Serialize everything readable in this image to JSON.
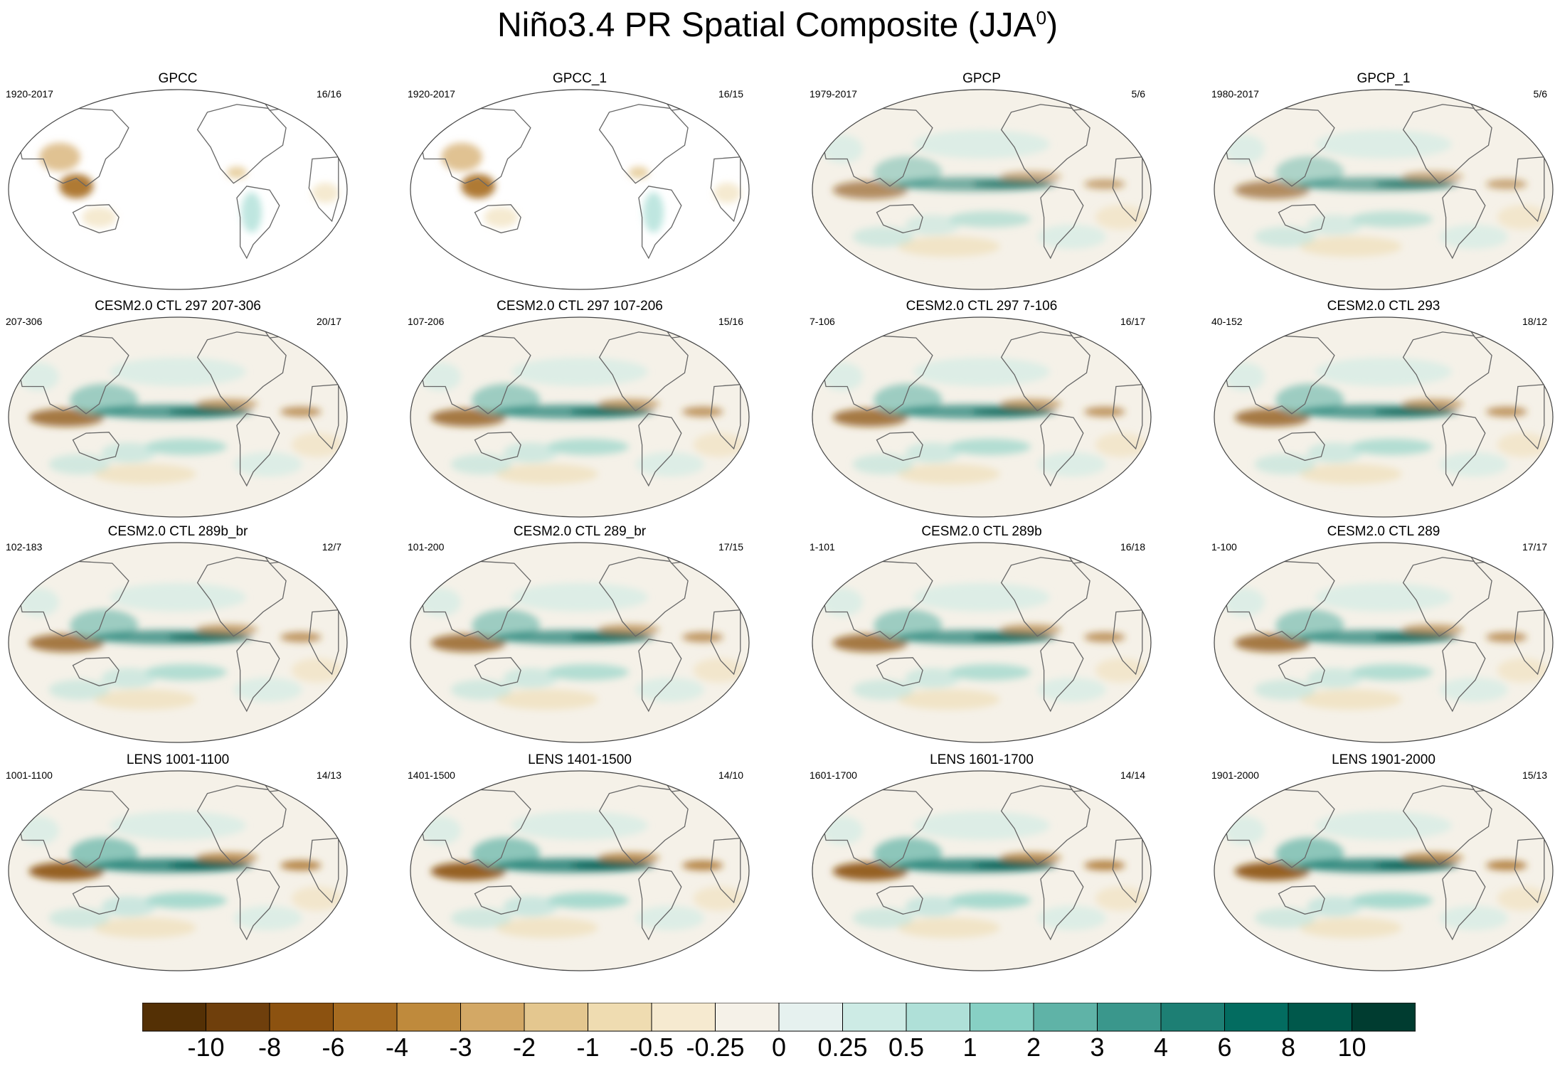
{
  "chart_data": {
    "type": "heatmap",
    "title_main": "Niño3.4 PR Spatial Composite (JJA",
    "title_sup": "0",
    "title_close": ")",
    "panels": [
      {
        "name": "GPCC",
        "years": "1920-2017",
        "counts": "16/16",
        "kind": "obs_land"
      },
      {
        "name": "GPCC_1",
        "years": "1920-2017",
        "counts": "16/15",
        "kind": "obs_land"
      },
      {
        "name": "GPCP",
        "years": "1979-2017",
        "counts": "5/6",
        "kind": "obs"
      },
      {
        "name": "GPCP_1",
        "years": "1980-2017",
        "counts": "5/6",
        "kind": "obs"
      },
      {
        "name": "CESM2.0 CTL 297 207-306",
        "years": "207-306",
        "counts": "20/17",
        "kind": "model"
      },
      {
        "name": "CESM2.0 CTL 297 107-206",
        "years": "107-206",
        "counts": "15/16",
        "kind": "model"
      },
      {
        "name": "CESM2.0 CTL 297 7-106",
        "years": "7-106",
        "counts": "16/17",
        "kind": "model"
      },
      {
        "name": "CESM2.0 CTL 293",
        "years": "40-152",
        "counts": "18/12",
        "kind": "model"
      },
      {
        "name": "CESM2.0 CTL 289b_br",
        "years": "102-183",
        "counts": "12/7",
        "kind": "model"
      },
      {
        "name": "CESM2.0 CTL 289_br",
        "years": "101-200",
        "counts": "17/15",
        "kind": "model"
      },
      {
        "name": "CESM2.0 CTL 289b",
        "years": "1-101",
        "counts": "16/18",
        "kind": "model"
      },
      {
        "name": "CESM2.0 CTL 289",
        "years": "1-100",
        "counts": "17/17",
        "kind": "model"
      },
      {
        "name": "LENS 1001-1100",
        "years": "1001-1100",
        "counts": "14/13",
        "kind": "lens"
      },
      {
        "name": "LENS 1401-1500",
        "years": "1401-1500",
        "counts": "14/10",
        "kind": "lens"
      },
      {
        "name": "LENS 1601-1700",
        "years": "1601-1700",
        "counts": "14/14",
        "kind": "lens"
      },
      {
        "name": "LENS 1901-2000",
        "years": "1901-2000",
        "counts": "15/13",
        "kind": "lens"
      }
    ],
    "colorbar": {
      "labels": [
        "-10",
        "-8",
        "-6",
        "-4",
        "-3",
        "-2",
        "-1",
        "-0.5",
        "-0.25",
        "0",
        "0.25",
        "0.5",
        "1",
        "2",
        "3",
        "4",
        "6",
        "8",
        "10"
      ],
      "colors": [
        "#543005",
        "#6f3f0c",
        "#8c5210",
        "#a66b20",
        "#bf8a3c",
        "#d3a865",
        "#e4c78f",
        "#efdcb1",
        "#f6ead0",
        "#f5f1e8",
        "#e6f1ef",
        "#cdebe5",
        "#afe0d8",
        "#87d0c4",
        "#5fb3a7",
        "#3a978c",
        "#1d7f74",
        "#036c60",
        "#00584b",
        "#003c30"
      ]
    }
  }
}
